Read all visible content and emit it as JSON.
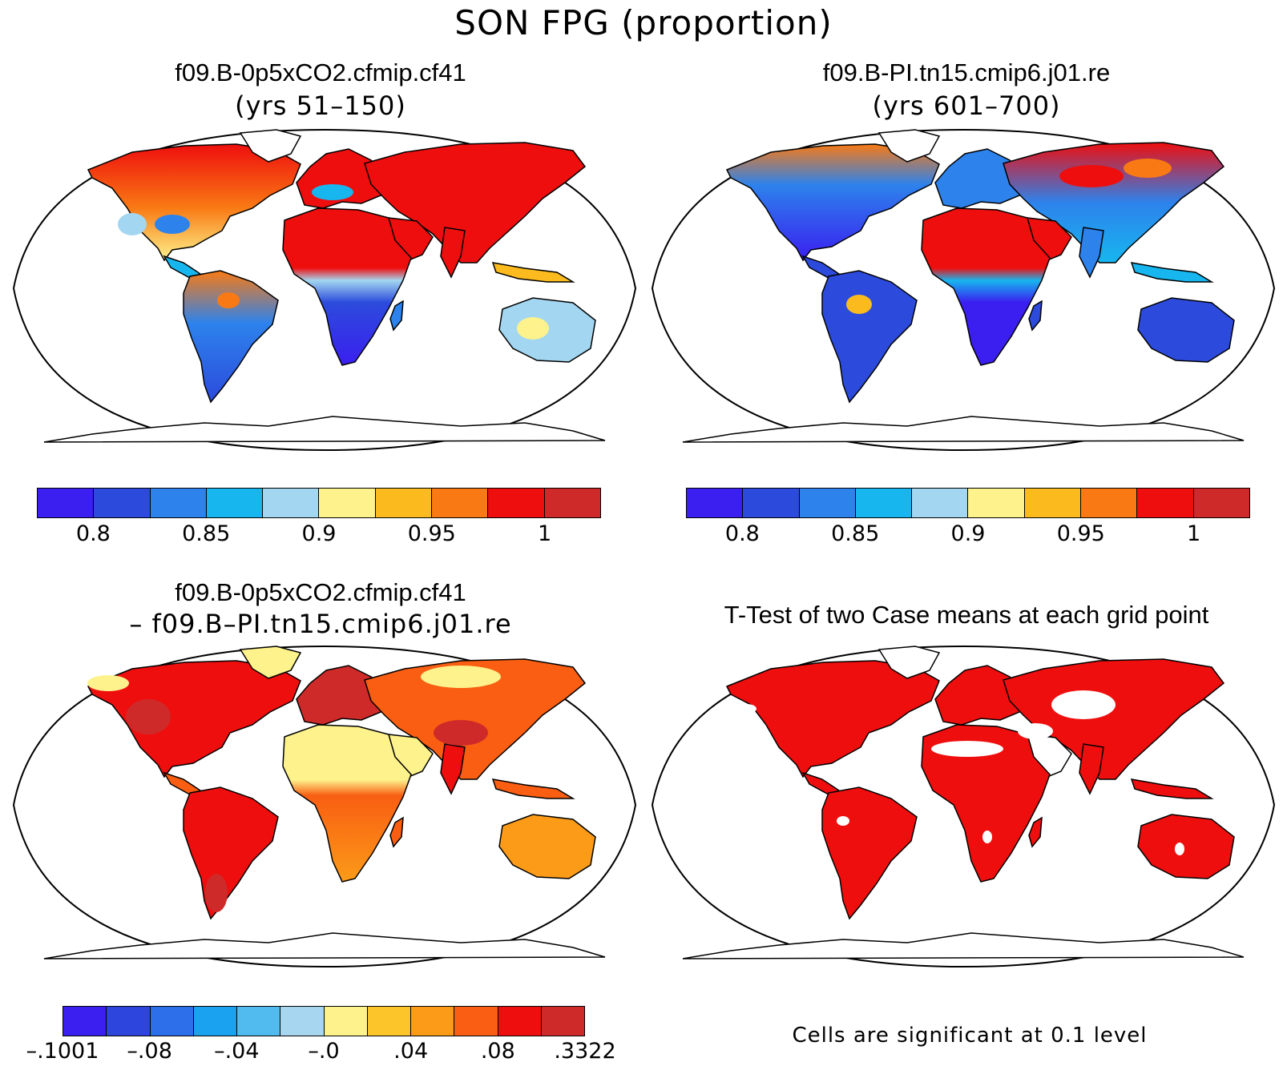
{
  "figure": {
    "title": "SON FPG (proportion)"
  },
  "panels": [
    {
      "title": "f09.B-0p5xCO2.cfmip.cf41",
      "subtitle": "(yrs 51–150)",
      "kind": "field"
    },
    {
      "title": "f09.B-PI.tn15.cmip6.j01.re",
      "subtitle": "(yrs 601–700)",
      "kind": "field"
    },
    {
      "title": "f09.B-0p5xCO2.cfmip.cf41",
      "subtitle": "– f09.B–PI.tn15.cmip6.j01.re",
      "kind": "difference"
    },
    {
      "title": "T-Test of two Case means at each grid point",
      "subtitle": "",
      "kind": "ttest"
    }
  ],
  "colorbars": {
    "field": {
      "colors": [
        "#3a1ff0",
        "#2c4bdc",
        "#2d82ec",
        "#17b6ef",
        "#a3d6f0",
        "#fdf28c",
        "#fbbb1e",
        "#f97a14",
        "#ee0e0e",
        "#cf2a2a"
      ],
      "labels": [
        "0.8",
        "0.85",
        "0.9",
        "0.95",
        "1"
      ]
    },
    "difference": {
      "colors": [
        "#3a1ff0",
        "#2d45dc",
        "#2d6eea",
        "#1aa1f0",
        "#51bbef",
        "#a7d7f0",
        "#fdf28c",
        "#fcc52a",
        "#fb9b18",
        "#f95e12",
        "#ee0e0e",
        "#cf2a2a"
      ],
      "labels": [
        "–.1001",
        "–.08",
        "–.04",
        "–.0",
        ".04",
        ".08",
        ".3322"
      ]
    }
  },
  "ttest_note": "Cells are significant at 0.1 level",
  "colors": {
    "land_significant": "#ee0e0e",
    "ocean": "#ffffff",
    "coast": "#000000"
  }
}
